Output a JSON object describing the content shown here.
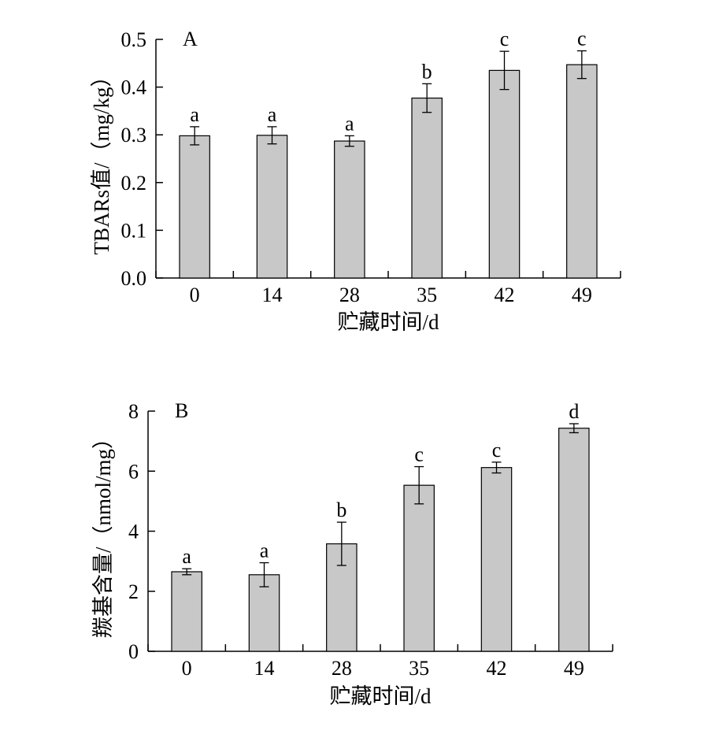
{
  "colors": {
    "bar_fill": "#c8c8c8",
    "bar_stroke": "#000000",
    "axis": "#000000"
  },
  "chart_data": [
    {
      "type": "bar",
      "panel_label": "A",
      "categories": [
        "0",
        "14",
        "28",
        "35",
        "42",
        "49"
      ],
      "values": [
        0.298,
        0.299,
        0.287,
        0.377,
        0.435,
        0.447
      ],
      "error": [
        0.019,
        0.018,
        0.011,
        0.03,
        0.04,
        0.029
      ],
      "significance": [
        "a",
        "a",
        "a",
        "b",
        "c",
        "c"
      ],
      "xlabel": "贮藏时间/d",
      "ylabel": "TBARs值/（mg/kg）",
      "ylim": [
        0,
        0.5
      ],
      "yticks": [
        "0.0",
        "0.1",
        "0.2",
        "0.3",
        "0.4",
        "0.5"
      ],
      "ytick_values": [
        0,
        0.1,
        0.2,
        0.3,
        0.4,
        0.5
      ],
      "grid": false
    },
    {
      "type": "bar",
      "panel_label": "B",
      "categories": [
        "0",
        "14",
        "28",
        "35",
        "42",
        "49"
      ],
      "values": [
        2.65,
        2.55,
        3.58,
        5.53,
        6.12,
        7.43
      ],
      "error": [
        0.1,
        0.4,
        0.72,
        0.62,
        0.18,
        0.15
      ],
      "significance": [
        "a",
        "a",
        "b",
        "c",
        "c",
        "d"
      ],
      "xlabel": "贮藏时间/d",
      "ylabel": "羰基含量/（nmol/mg）",
      "ylim": [
        0,
        8
      ],
      "yticks": [
        "0",
        "2",
        "4",
        "6",
        "8"
      ],
      "ytick_values": [
        0,
        2,
        4,
        6,
        8
      ],
      "grid": false
    }
  ]
}
